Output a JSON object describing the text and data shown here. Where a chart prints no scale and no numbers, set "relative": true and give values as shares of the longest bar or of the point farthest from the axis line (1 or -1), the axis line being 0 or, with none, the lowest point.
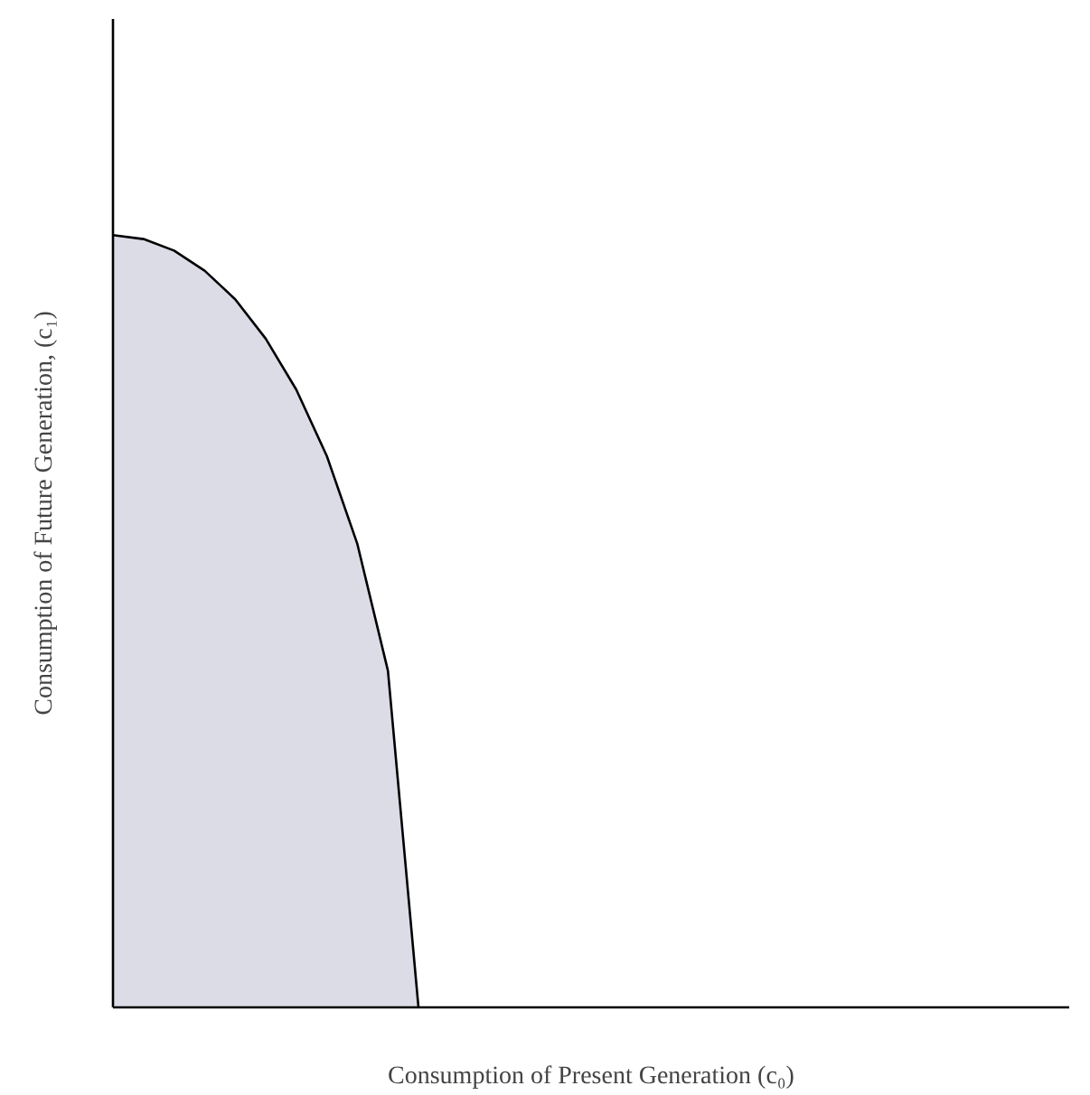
{
  "chart_data": {
    "type": "area",
    "relative": true,
    "xlabel": "Consumption of Present Generation (c₀)",
    "ylabel": "Consumption of Future Generation, (c₁)",
    "categories": [
      null,
      null,
      null,
      null,
      null,
      null,
      null,
      null,
      null,
      null,
      null,
      null,
      null,
      null,
      null,
      null,
      null,
      null,
      null,
      null,
      null,
      null,
      null,
      null,
      null,
      null,
      null,
      null,
      null,
      null,
      null,
      null
    ],
    "series": [
      {
        "color": "#dcdce6",
        "values": [
          1,
          0.995,
          0.98,
          0.954,
          0.917,
          0.866,
          0.8,
          0.714,
          0.6,
          0.436,
          0,
          null,
          null,
          null,
          null,
          null,
          null,
          null,
          null,
          null,
          null,
          null,
          null,
          null,
          null,
          null,
          null,
          null,
          null,
          null,
          null,
          null
        ]
      }
    ],
    "grid": false
  }
}
